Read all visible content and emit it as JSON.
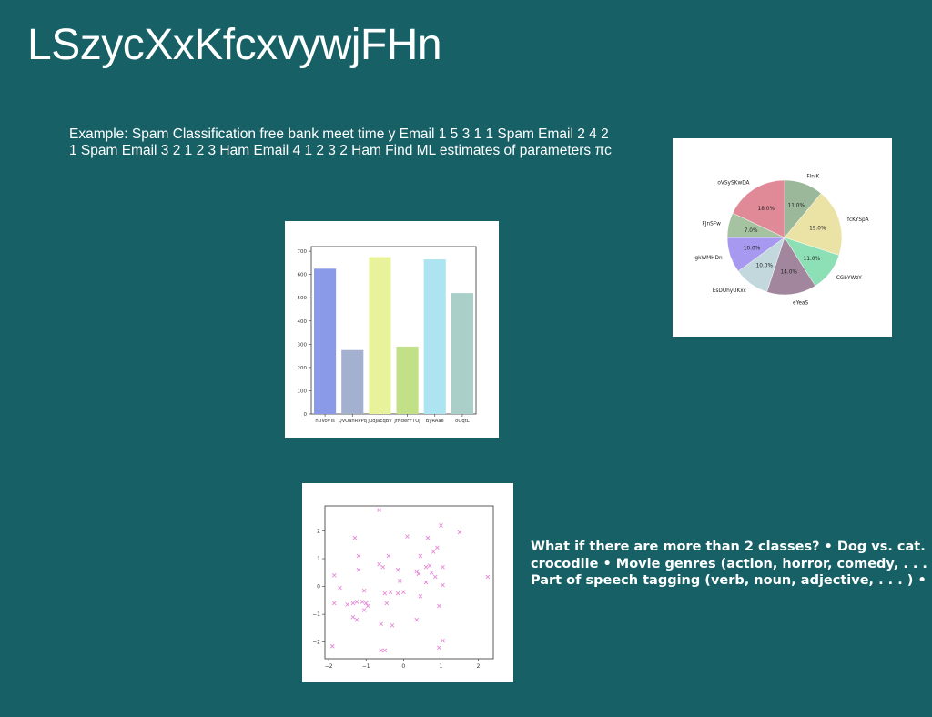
{
  "slide": {
    "title": "LSzycXxKfcxvywjFHn",
    "paragraph_line1": "Example: Spam Classification free bank meet time y Email 1 5 3 1 1 Spam Email 2 4 2",
    "paragraph_line2": "1 Spam Email 3 2 1 2 3 Ham Email 4 1 2 3 2 Ham Find ML estimates of parameters πc",
    "bullets_line1": "What if there are more than 2 classes? • Dog vs. cat.",
    "bullets_line2": "crocodile • Movie genres (action, horror, comedy, . . . )",
    "bullets_line3": "Part of speech tagging (verb, noun, adjective, . . . ) • . . ."
  },
  "chart_data": [
    {
      "type": "bar",
      "categories": [
        "hUVovTs",
        "QVOahRPPq",
        "JudJaEqBv",
        "JfNdeFFTOj",
        "ByRAae",
        "oOqtL"
      ],
      "values": [
        625,
        275,
        675,
        290,
        665,
        520
      ],
      "colors": [
        "#8a9ae8",
        "#a3b0d0",
        "#e8f29a",
        "#c2e088",
        "#aee4f2",
        "#a9cfc8"
      ],
      "ylim": [
        0,
        720
      ],
      "yticks": [
        0,
        100,
        200,
        300,
        400,
        500,
        600,
        700
      ]
    },
    {
      "type": "pie",
      "labels": [
        "FlnlK",
        "fcKYSpA",
        "CGbYWzY",
        "eYeaS",
        "EsDUhyUKxc",
        "gkWMHDn",
        "FJnSFw",
        "oVSySKwDA"
      ],
      "values": [
        11.0,
        19.0,
        11.0,
        14.0,
        10.0,
        10.0,
        7.0,
        18.0
      ],
      "value_labels": [
        "11.0%",
        "19.0%",
        "11.0%",
        "14.0%",
        "10.0%",
        "10.0%",
        "7.0%",
        "18.0%"
      ],
      "colors": [
        "#9cb89a",
        "#ebe3a6",
        "#8ddfb5",
        "#a1869e",
        "#c2d8dc",
        "#a799f0",
        "#a5c3a0",
        "#e08a98"
      ]
    },
    {
      "type": "scatter",
      "marker": "x",
      "color": "#e58ad8",
      "xlim": [
        -2.1,
        2.4
      ],
      "ylim": [
        -2.6,
        2.9
      ],
      "xticks": [
        -2,
        -1,
        0,
        1,
        2
      ],
      "yticks": [
        -2,
        -1,
        0,
        1,
        2
      ],
      "points": [
        [
          -0.65,
          2.75
        ],
        [
          1.0,
          2.2
        ],
        [
          1.5,
          1.95
        ],
        [
          0.1,
          1.8
        ],
        [
          0.65,
          1.75
        ],
        [
          -1.3,
          1.75
        ],
        [
          0.9,
          1.4
        ],
        [
          0.8,
          1.25
        ],
        [
          -0.4,
          1.1
        ],
        [
          0.45,
          1.1
        ],
        [
          -1.2,
          1.1
        ],
        [
          0.6,
          0.7
        ],
        [
          0.7,
          0.75
        ],
        [
          1.05,
          0.7
        ],
        [
          -0.65,
          0.8
        ],
        [
          -0.55,
          0.7
        ],
        [
          0.35,
          0.55
        ],
        [
          -1.2,
          0.6
        ],
        [
          0.4,
          0.45
        ],
        [
          0.75,
          0.5
        ],
        [
          -1.85,
          0.4
        ],
        [
          2.25,
          0.35
        ],
        [
          -0.15,
          0.6
        ],
        [
          0.85,
          0.35
        ],
        [
          -0.1,
          0.2
        ],
        [
          0.6,
          0.15
        ],
        [
          1.05,
          0.05
        ],
        [
          -1.7,
          -0.05
        ],
        [
          -0.35,
          -0.2
        ],
        [
          0.0,
          -0.2
        ],
        [
          -0.5,
          -0.25
        ],
        [
          -1.05,
          -0.15
        ],
        [
          -0.15,
          -0.25
        ],
        [
          0.45,
          -0.35
        ],
        [
          -1.25,
          -0.55
        ],
        [
          -1.1,
          -0.55
        ],
        [
          -1.35,
          -0.6
        ],
        [
          -1.85,
          -0.6
        ],
        [
          -0.45,
          -0.6
        ],
        [
          -1.0,
          -0.6
        ],
        [
          -1.5,
          -0.65
        ],
        [
          -0.95,
          -0.7
        ],
        [
          0.95,
          -0.7
        ],
        [
          -1.05,
          -0.85
        ],
        [
          -1.35,
          -1.1
        ],
        [
          -1.25,
          -1.2
        ],
        [
          0.35,
          -1.2
        ],
        [
          -0.6,
          -1.35
        ],
        [
          -0.3,
          -1.4
        ],
        [
          1.05,
          -1.95
        ],
        [
          0.95,
          -2.2
        ],
        [
          -1.9,
          -2.15
        ],
        [
          -0.6,
          -2.3
        ],
        [
          -0.5,
          -2.3
        ]
      ]
    }
  ]
}
